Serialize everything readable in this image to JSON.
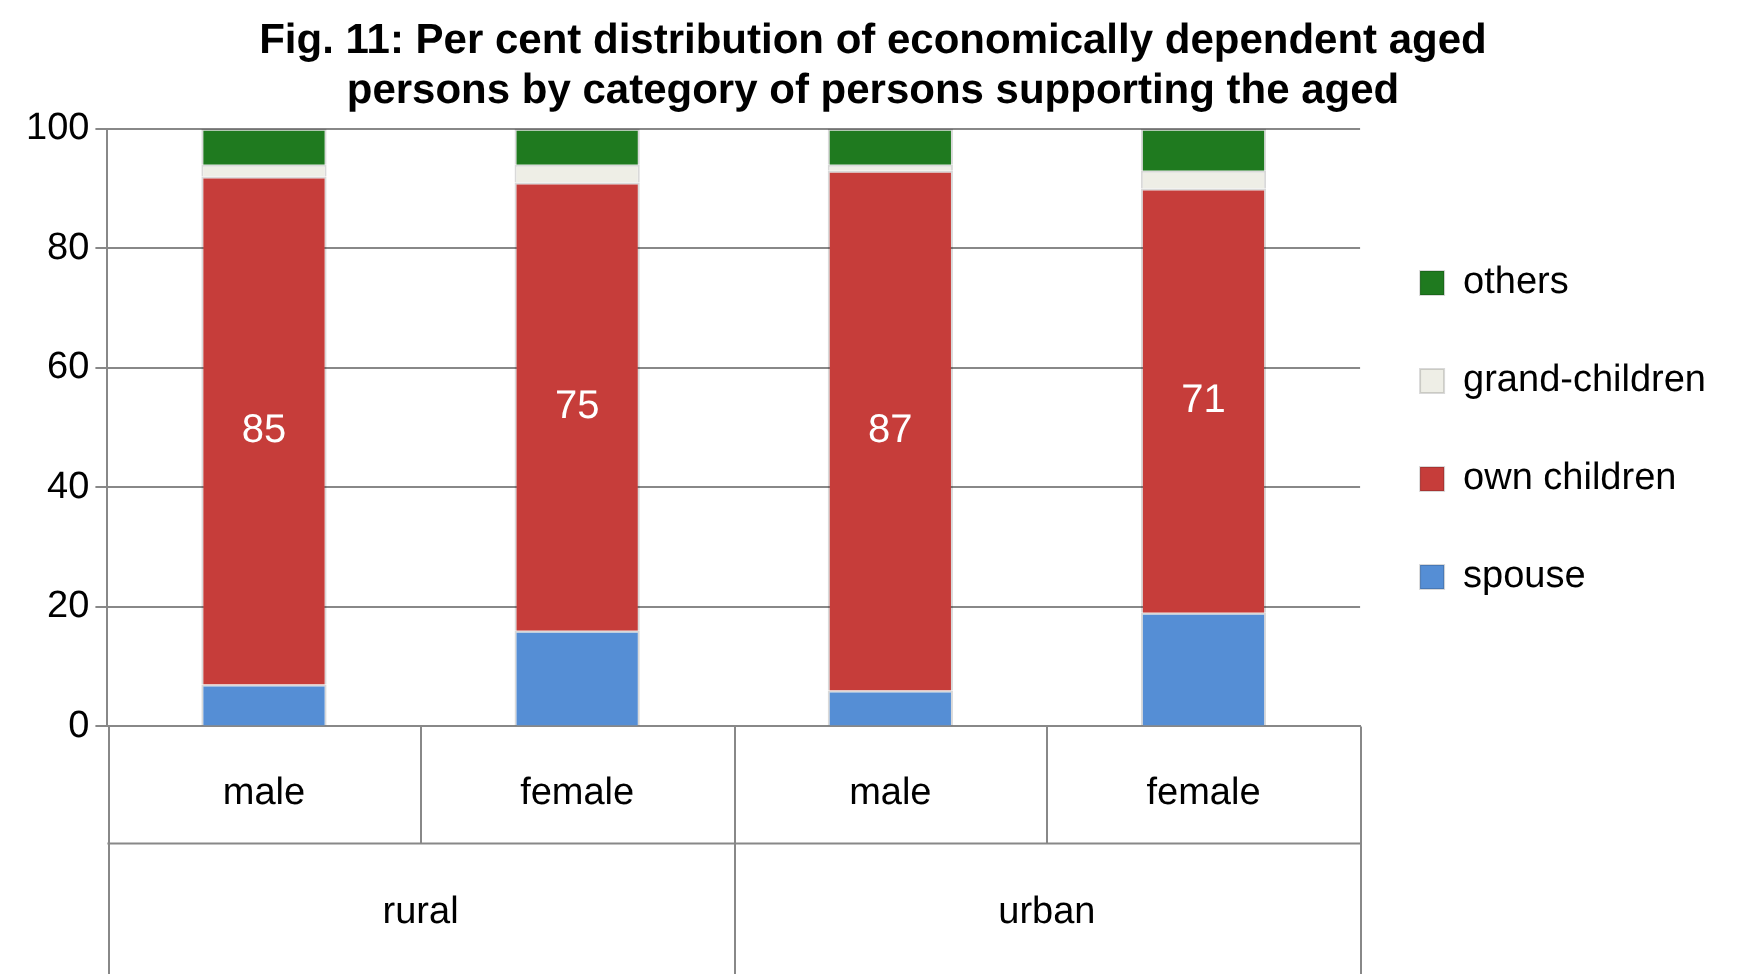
{
  "chart_data": {
    "type": "bar",
    "title": "Fig. 11: Per cent distribution of economically dependent aged persons by category of persons supporting the aged",
    "categories": [
      "male",
      "female",
      "male",
      "female"
    ],
    "annotations": [
      "rural",
      "urban"
    ],
    "stacked": true,
    "ylim": [
      0,
      100
    ],
    "yticks": [
      0,
      20,
      40,
      60,
      80,
      100
    ],
    "grid": "y",
    "legend": "right",
    "series": [
      {
        "name": "spouse",
        "color": "#558ed5",
        "values": [
          7,
          16,
          6,
          19
        ]
      },
      {
        "name": "own children",
        "color": "#c63d3a",
        "values": [
          85,
          75,
          87,
          71
        ],
        "value_labels": [
          "85",
          "75",
          "87",
          "71"
        ]
      },
      {
        "name": "grand-children",
        "color": "#eeeee6",
        "values": [
          2,
          3,
          1,
          3
        ]
      },
      {
        "name": "others",
        "color": "#1f7a1f",
        "values": [
          6,
          6,
          6,
          7
        ]
      }
    ]
  }
}
